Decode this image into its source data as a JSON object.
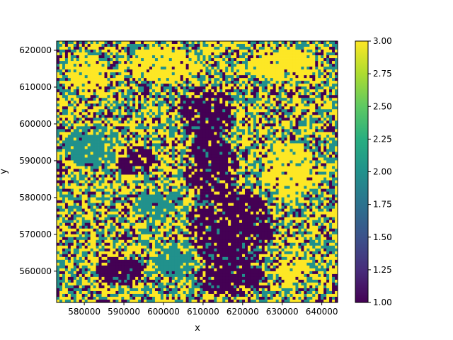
{
  "chart_data": {
    "type": "heatmap",
    "title": "",
    "xlabel": "x",
    "ylabel": "y",
    "xlim": [
      573000,
      644000
    ],
    "ylim": [
      551500,
      622500
    ],
    "xticks": [
      580000,
      590000,
      600000,
      610000,
      620000,
      630000,
      640000
    ],
    "xtick_labels": [
      "580000",
      "590000",
      "600000",
      "610000",
      "620000",
      "630000",
      "640000"
    ],
    "yticks": [
      560000,
      570000,
      580000,
      590000,
      600000,
      610000,
      620000
    ],
    "ytick_labels": [
      "560000",
      "570000",
      "580000",
      "590000",
      "600000",
      "610000",
      "620000"
    ],
    "colorbar": {
      "min": 1.0,
      "max": 3.0,
      "colormap": "viridis",
      "ticks": [
        1.0,
        1.25,
        1.5,
        1.75,
        2.0,
        2.25,
        2.5,
        2.75,
        3.0
      ],
      "tick_labels": [
        "1.00",
        "1.25",
        "1.50",
        "1.75",
        "2.00",
        "2.25",
        "2.50",
        "2.75",
        "3.00"
      ]
    },
    "value_classes": [
      1,
      2,
      3
    ],
    "class_colors": {
      "1": "#440154",
      "2": "#21918c",
      "3": "#fde725"
    },
    "regions": [
      {
        "value": 1,
        "shape": "ellipse",
        "cx": 611000,
        "cy": 603000,
        "rx": 7500,
        "ry": 7500
      },
      {
        "value": 1,
        "shape": "ellipse",
        "cx": 612000,
        "cy": 588000,
        "rx": 7000,
        "ry": 9000
      },
      {
        "value": 1,
        "shape": "ellipse",
        "cx": 617000,
        "cy": 572000,
        "rx": 11000,
        "ry": 11000
      },
      {
        "value": 1,
        "shape": "ellipse",
        "cx": 617000,
        "cy": 558000,
        "rx": 9000,
        "ry": 5000
      },
      {
        "value": 1,
        "shape": "ellipse",
        "cx": 593000,
        "cy": 590000,
        "rx": 5000,
        "ry": 4000
      },
      {
        "value": 1,
        "shape": "ellipse",
        "cx": 589000,
        "cy": 560000,
        "rx": 6000,
        "ry": 4000
      },
      {
        "value": 2,
        "shape": "ellipse",
        "cx": 603000,
        "cy": 563000,
        "rx": 5500,
        "ry": 4500
      },
      {
        "value": 2,
        "shape": "ellipse",
        "cx": 598000,
        "cy": 578000,
        "rx": 6000,
        "ry": 4000
      },
      {
        "value": 2,
        "shape": "ellipse",
        "cx": 582000,
        "cy": 594000,
        "rx": 7000,
        "ry": 6000
      },
      {
        "value": 3,
        "shape": "ellipse",
        "cx": 632000,
        "cy": 587000,
        "rx": 6500,
        "ry": 8000
      },
      {
        "value": 3,
        "shape": "ellipse",
        "cx": 581000,
        "cy": 614000,
        "rx": 5000,
        "ry": 5000
      },
      {
        "value": 3,
        "shape": "ellipse",
        "cx": 630000,
        "cy": 616000,
        "rx": 9000,
        "ry": 5000
      },
      {
        "value": 3,
        "shape": "ellipse",
        "cx": 633000,
        "cy": 560000,
        "rx": 4000,
        "ry": 4000
      },
      {
        "value": 3,
        "shape": "ellipse",
        "cx": 600000,
        "cy": 616000,
        "rx": 9000,
        "ry": 5000
      }
    ]
  }
}
